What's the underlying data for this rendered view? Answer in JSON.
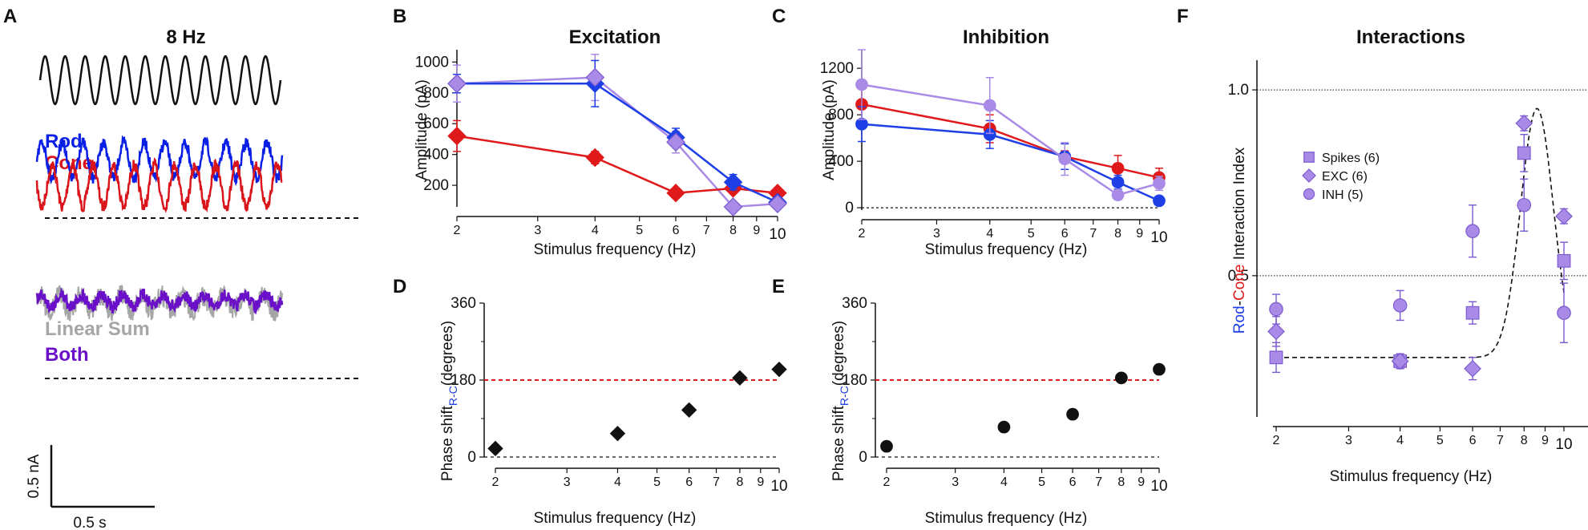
{
  "panels": {
    "A": {
      "label": "A",
      "title": "8 Hz",
      "legend_top": [
        {
          "name": "Rod",
          "color": "#0a1fe6"
        },
        {
          "name": "Cone",
          "color": "#d9141a"
        }
      ],
      "legend_bottom": [
        {
          "name": "Linear Sum",
          "color": "#a6a6a6"
        },
        {
          "name": "Both",
          "color": "#6a10c9"
        }
      ],
      "scalebar": {
        "y_label": "0.5 nA",
        "x_label": "0.5 s"
      }
    },
    "B": {
      "label": "B",
      "title": "Excitation",
      "xlabel": "Stimulus frequency (Hz)",
      "ylabel": "Amplitude (pA)"
    },
    "C": {
      "label": "C",
      "title": "Inhibition",
      "xlabel": "Stimulus frequency (Hz)",
      "ylabel": "Amplitude (pA)"
    },
    "D": {
      "label": "D",
      "xlabel": "Stimulus frequency (Hz)",
      "ylabel_main": "Phase shift",
      "ylabel_sub": "R-C",
      "ylabel_tail": "(degrees)"
    },
    "E": {
      "label": "E",
      "xlabel": "Stimulus frequency (Hz)",
      "ylabel_main": "Phase shift",
      "ylabel_sub": "R-C",
      "ylabel_tail": "(degrees)"
    },
    "F": {
      "label": "F",
      "title": "Interactions",
      "xlabel": "Stimulus frequency (Hz)",
      "ylabel_rod": "Rod",
      "ylabel_dash": "-",
      "ylabel_cone": "Cone",
      "ylabel_tail": " Interaction Index"
    }
  },
  "colors": {
    "rod": "#1f3fe6",
    "cone": "#e01a1a",
    "both": "#a98ae6",
    "both_line": "#9b7fe0",
    "purple_fill": "#a98ae6",
    "purple_edge": "#7b5ad0",
    "ref_red": "#e01a1a",
    "black": "#111111"
  },
  "chart_data": [
    {
      "id": "B",
      "type": "line",
      "title": "Excitation",
      "xscale": "log",
      "xlim": [
        2,
        10
      ],
      "x_ticks": [
        2,
        3,
        4,
        5,
        6,
        7,
        8,
        9,
        10
      ],
      "x_ticklabels": [
        "2",
        "3",
        "4",
        "5",
        "6",
        "7",
        "8",
        "9",
        "10"
      ],
      "ylim": [
        60,
        1080
      ],
      "y_ticks": [
        200,
        400,
        600,
        800,
        1000
      ],
      "y_ticklabels": [
        "200",
        "400",
        "600",
        "800",
        "1000"
      ],
      "xlabel": "Stimulus frequency (Hz)",
      "ylabel": "Amplitude (pA)",
      "series": [
        {
          "name": "Rod",
          "color": "#1f3fe6",
          "marker": "diamond",
          "x": [
            2,
            4,
            6,
            8,
            10
          ],
          "values": [
            860,
            860,
            510,
            220,
            90
          ],
          "err": [
            60,
            150,
            60,
            50,
            15
          ]
        },
        {
          "name": "Cone",
          "color": "#e01a1a",
          "marker": "diamond",
          "x": [
            2,
            4,
            6,
            8,
            10
          ],
          "values": [
            520,
            380,
            150,
            180,
            150
          ],
          "err": [
            100,
            40,
            10,
            30,
            10
          ]
        },
        {
          "name": "Both",
          "color": "#a98ae6",
          "marker": "diamond",
          "x": [
            2,
            4,
            6,
            8,
            10
          ],
          "values": [
            860,
            900,
            480,
            60,
            80
          ],
          "err": [
            120,
            150,
            70,
            20,
            10
          ]
        }
      ]
    },
    {
      "id": "C",
      "type": "line",
      "title": "Inhibition",
      "xscale": "log",
      "xlim": [
        2,
        10
      ],
      "x_ticks": [
        2,
        3,
        4,
        5,
        6,
        7,
        8,
        9,
        10
      ],
      "x_ticklabels": [
        "2",
        "3",
        "4",
        "5",
        "6",
        "7",
        "8",
        "9",
        "10"
      ],
      "ylim": [
        -20,
        1360
      ],
      "y_ticks": [
        0,
        400,
        800,
        1200
      ],
      "y_ticklabels": [
        "0",
        "400",
        "800",
        "1200"
      ],
      "reference_line": 0,
      "xlabel": "Stimulus frequency (Hz)",
      "ylabel": "Amplitude (pA)",
      "series": [
        {
          "name": "Rod",
          "color": "#1f3fe6",
          "marker": "circle",
          "x": [
            2,
            4,
            6,
            8,
            10
          ],
          "values": [
            720,
            630,
            440,
            220,
            60
          ],
          "err": [
            150,
            120,
            110,
            60,
            15
          ]
        },
        {
          "name": "Cone",
          "color": "#e01a1a",
          "marker": "circle",
          "x": [
            2,
            4,
            6,
            8,
            10
          ],
          "values": [
            890,
            680,
            440,
            340,
            260
          ],
          "err": [
            180,
            120,
            50,
            110,
            80
          ]
        },
        {
          "name": "Both",
          "color": "#a98ae6",
          "marker": "circle",
          "x": [
            2,
            4,
            6,
            8,
            10
          ],
          "values": [
            1060,
            880,
            420,
            110,
            210
          ],
          "err": [
            300,
            240,
            140,
            40,
            60
          ]
        }
      ]
    },
    {
      "id": "D",
      "type": "scatter",
      "xscale": "log",
      "xlim": [
        2,
        10
      ],
      "x_ticks": [
        2,
        3,
        4,
        5,
        6,
        7,
        8,
        9,
        10
      ],
      "x_ticklabels": [
        "2",
        "3",
        "4",
        "5",
        "6",
        "7",
        "8",
        "9",
        "10"
      ],
      "ylim": [
        0,
        360
      ],
      "y_ticks": [
        0,
        180,
        360
      ],
      "y_ticklabels": [
        "0",
        "180",
        "360"
      ],
      "reference_lines": [
        {
          "y": 180,
          "color": "#e01a1a"
        },
        {
          "y": 0,
          "color": "#111111"
        }
      ],
      "xlabel": "Stimulus frequency (Hz)",
      "ylabel": "Phase shift R-C (degrees)",
      "series": [
        {
          "name": "Excitation",
          "color": "#111111",
          "marker": "diamond",
          "x": [
            2,
            4,
            6,
            8,
            10
          ],
          "values": [
            20,
            55,
            110,
            185,
            205
          ]
        }
      ]
    },
    {
      "id": "E",
      "type": "scatter",
      "xscale": "log",
      "xlim": [
        2,
        10
      ],
      "x_ticks": [
        2,
        3,
        4,
        5,
        6,
        7,
        8,
        9,
        10
      ],
      "x_ticklabels": [
        "2",
        "3",
        "4",
        "5",
        "6",
        "7",
        "8",
        "9",
        "10"
      ],
      "ylim": [
        0,
        360
      ],
      "y_ticks": [
        0,
        180,
        360
      ],
      "y_ticklabels": [
        "0",
        "180",
        "360"
      ],
      "reference_lines": [
        {
          "y": 180,
          "color": "#e01a1a"
        },
        {
          "y": 0,
          "color": "#111111"
        }
      ],
      "xlabel": "Stimulus frequency (Hz)",
      "ylabel": "Phase shift R-C (degrees)",
      "series": [
        {
          "name": "Inhibition",
          "color": "#111111",
          "marker": "circle",
          "x": [
            2,
            4,
            6,
            8,
            10
          ],
          "values": [
            25,
            70,
            100,
            185,
            205
          ]
        }
      ]
    },
    {
      "id": "F",
      "type": "scatter",
      "title": "Interactions",
      "xscale": "log",
      "xlim": [
        2,
        10
      ],
      "x_ticks": [
        2,
        3,
        4,
        5,
        6,
        7,
        8,
        9,
        10
      ],
      "x_ticklabels": [
        "2",
        "3",
        "4",
        "5",
        "6",
        "7",
        "8",
        "9",
        "10"
      ],
      "ylim": [
        0.12,
        1.08
      ],
      "y_ticks": [
        0.5,
        1.0
      ],
      "y_ticklabels": [
        "0.5",
        "1.0"
      ],
      "reference_lines": [
        {
          "y": 1.0
        },
        {
          "y": 0.5
        }
      ],
      "legend_position": "upper-left",
      "xlabel": "Stimulus frequency (Hz)",
      "ylabel": "Rod-Cone Interaction Index",
      "series": [
        {
          "name": "Spikes (6)",
          "marker": "square",
          "x": [
            2,
            4,
            6,
            8,
            10
          ],
          "values": [
            0.28,
            0.27,
            0.4,
            0.83,
            0.54
          ],
          "err": [
            0.04,
            0.02,
            0.03,
            0.05,
            0.05
          ]
        },
        {
          "name": "EXC (6)",
          "marker": "diamond",
          "x": [
            2,
            4,
            6,
            8,
            10
          ],
          "values": [
            0.35,
            0.27,
            0.25,
            0.91,
            0.66
          ],
          "err": [
            0.04,
            0.02,
            0.03,
            0.02,
            0.02
          ]
        },
        {
          "name": "INH (5)",
          "marker": "circle",
          "x": [
            2,
            4,
            6,
            8,
            10
          ],
          "values": [
            0.41,
            0.42,
            0.62,
            0.69,
            0.4
          ],
          "err": [
            0.04,
            0.04,
            0.07,
            0.07,
            0.08
          ]
        }
      ],
      "fit": {
        "style": "dashed",
        "baseline": 0.28,
        "peak": 0.95,
        "peak_x": 8.6,
        "rise_x": 6.3
      }
    }
  ]
}
